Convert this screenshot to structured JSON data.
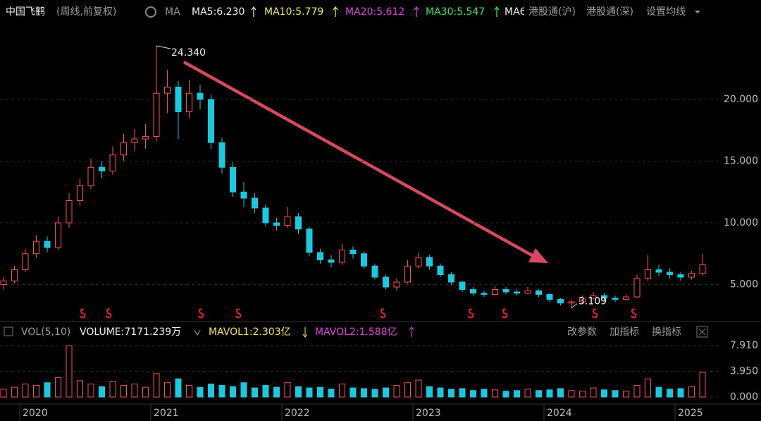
{
  "header": {
    "name": "中国飞鹤",
    "mode": "(周线,前复权)",
    "ma_label": "MA",
    "ma": [
      "MA5:6.230",
      "MA10:5.779",
      "MA20:5.612",
      "MA30:5.547",
      "MA6"
    ],
    "tabs": [
      "港股通(沪)",
      "港股通(深)",
      "设置均线"
    ]
  },
  "volume_header": {
    "indicator": "VOL(5,10)",
    "volume": "VOLUME:7171.239万",
    "mavol1": "MAVOL1:2.303亿",
    "mavol2": "MAVOL2:1.588亿",
    "buttons": [
      "改参数",
      "加指标",
      "换指标"
    ]
  },
  "chart_data": [
    {
      "type": "candlestick",
      "up_color": "#ff4c4c",
      "down_color": "#19c9e0",
      "grid": true,
      "ylim": [
        2.23,
        26.34
      ],
      "yticks": [
        {
          "value": 5,
          "label": "5.000"
        },
        {
          "value": 10,
          "label": "10.000"
        },
        {
          "value": 15,
          "label": "15.000"
        },
        {
          "value": 20,
          "label": "20.000"
        }
      ],
      "annotations": [
        "24.340",
        "3.109"
      ],
      "open": [
        5.0,
        5.3,
        6.2,
        7.5,
        8.5,
        8.0,
        10.0,
        11.8,
        13.0,
        14.5,
        14.2,
        15.5,
        16.5,
        16.8,
        17.0,
        20.5,
        21.0,
        19.0,
        20.5,
        20.0,
        16.5,
        14.5,
        12.5,
        12.0,
        11.2,
        10.0,
        9.8,
        10.5,
        9.5,
        7.6,
        7.0,
        6.8,
        7.8,
        7.5,
        6.5,
        5.6,
        4.8,
        5.2,
        6.5,
        7.2,
        6.5,
        5.8,
        5.2,
        4.6,
        4.3,
        4.2,
        4.6,
        4.4,
        4.3,
        4.5,
        4.2,
        3.8,
        3.5,
        3.6,
        3.9,
        4.1,
        3.9,
        3.8,
        4.0,
        5.5,
        6.2,
        6.0,
        5.8,
        5.6,
        5.9
      ],
      "high": [
        5.6,
        6.5,
        7.9,
        9.0,
        8.9,
        10.5,
        12.4,
        13.6,
        15.2,
        15.0,
        16.2,
        17.2,
        17.6,
        18.0,
        24.34,
        22.4,
        21.5,
        21.6,
        21.2,
        20.4,
        16.9,
        14.9,
        13.3,
        12.4,
        11.5,
        10.4,
        11.3,
        10.8,
        9.7,
        7.9,
        7.4,
        8.3,
        8.1,
        7.7,
        6.7,
        5.8,
        5.5,
        7.0,
        7.6,
        7.4,
        6.7,
        6.0,
        5.3,
        4.8,
        4.5,
        4.9,
        4.8,
        4.6,
        4.8,
        4.6,
        4.3,
        3.9,
        3.8,
        4.1,
        4.4,
        4.3,
        4.1,
        4.2,
        5.8,
        7.4,
        6.6,
        6.3,
        6.0,
        6.1,
        7.5
      ],
      "low": [
        4.6,
        5.1,
        6.0,
        7.2,
        7.6,
        7.8,
        9.6,
        11.4,
        12.7,
        13.6,
        13.9,
        15.0,
        15.8,
        16.0,
        16.6,
        18.9,
        16.8,
        18.5,
        19.2,
        16.0,
        14.0,
        12.1,
        11.3,
        10.8,
        9.7,
        9.4,
        9.6,
        9.1,
        7.3,
        6.7,
        6.4,
        6.6,
        7.1,
        6.3,
        5.4,
        4.6,
        4.5,
        5.1,
        6.3,
        6.2,
        5.6,
        5.0,
        4.4,
        4.1,
        4.0,
        4.1,
        4.2,
        4.1,
        4.2,
        4.0,
        3.6,
        3.3,
        3.109,
        3.5,
        3.8,
        3.7,
        3.6,
        3.7,
        3.9,
        5.3,
        5.7,
        5.5,
        5.3,
        5.4,
        5.7
      ],
      "close": [
        5.3,
        6.2,
        7.5,
        8.5,
        8.0,
        10.0,
        11.8,
        13.0,
        14.5,
        14.2,
        15.5,
        16.5,
        16.8,
        17.0,
        20.5,
        21.0,
        19.0,
        20.5,
        20.0,
        16.5,
        14.5,
        12.5,
        12.0,
        11.2,
        10.0,
        9.8,
        10.5,
        9.5,
        7.6,
        7.0,
        6.8,
        7.8,
        7.5,
        6.5,
        5.6,
        4.8,
        5.2,
        6.5,
        7.2,
        6.5,
        5.8,
        5.2,
        4.6,
        4.3,
        4.2,
        4.6,
        4.4,
        4.3,
        4.5,
        4.2,
        3.8,
        3.5,
        3.6,
        3.9,
        4.1,
        3.9,
        3.8,
        4.0,
        5.5,
        6.2,
        6.0,
        5.8,
        5.6,
        5.9,
        6.6
      ]
    },
    {
      "type": "bar",
      "color": "#19c9e0",
      "ylim": [
        0,
        9
      ],
      "yticks": [
        {
          "value": 0,
          "label": "0.000"
        },
        {
          "value": 3.95,
          "label": "3.950"
        },
        {
          "value": 7.91,
          "label": "7.910"
        }
      ],
      "categories": [
        null,
        null,
        "2020",
        null,
        null,
        null,
        null,
        null,
        null,
        null,
        null,
        null,
        null,
        null,
        "2021",
        null,
        null,
        null,
        null,
        null,
        null,
        null,
        null,
        null,
        null,
        null,
        "2022",
        null,
        null,
        null,
        null,
        null,
        null,
        null,
        null,
        null,
        null,
        null,
        "2023",
        null,
        null,
        null,
        null,
        null,
        null,
        null,
        null,
        null,
        null,
        null,
        "2024",
        null,
        null,
        null,
        null,
        null,
        null,
        null,
        null,
        null,
        null,
        null,
        "2025",
        null,
        null
      ],
      "values": [
        1.2,
        1.5,
        2.0,
        1.8,
        2.2,
        3.0,
        7.9,
        2.5,
        2.0,
        1.6,
        2.4,
        1.8,
        2.0,
        1.5,
        3.6,
        2.2,
        2.8,
        1.8,
        1.5,
        2.0,
        1.8,
        1.6,
        2.2,
        1.4,
        1.8,
        1.5,
        2.2,
        1.6,
        1.4,
        1.5,
        1.2,
        2.0,
        1.4,
        1.3,
        1.2,
        1.4,
        1.8,
        2.2,
        2.6,
        1.6,
        1.4,
        1.2,
        1.3,
        1.0,
        1.2,
        1.1,
        0.9,
        1.0,
        1.2,
        1.0,
        1.1,
        1.3,
        1.0,
        0.9,
        1.4,
        1.1,
        1.0,
        0.9,
        1.8,
        2.8,
        1.5,
        1.2,
        1.3,
        1.6,
        3.8
      ]
    }
  ]
}
